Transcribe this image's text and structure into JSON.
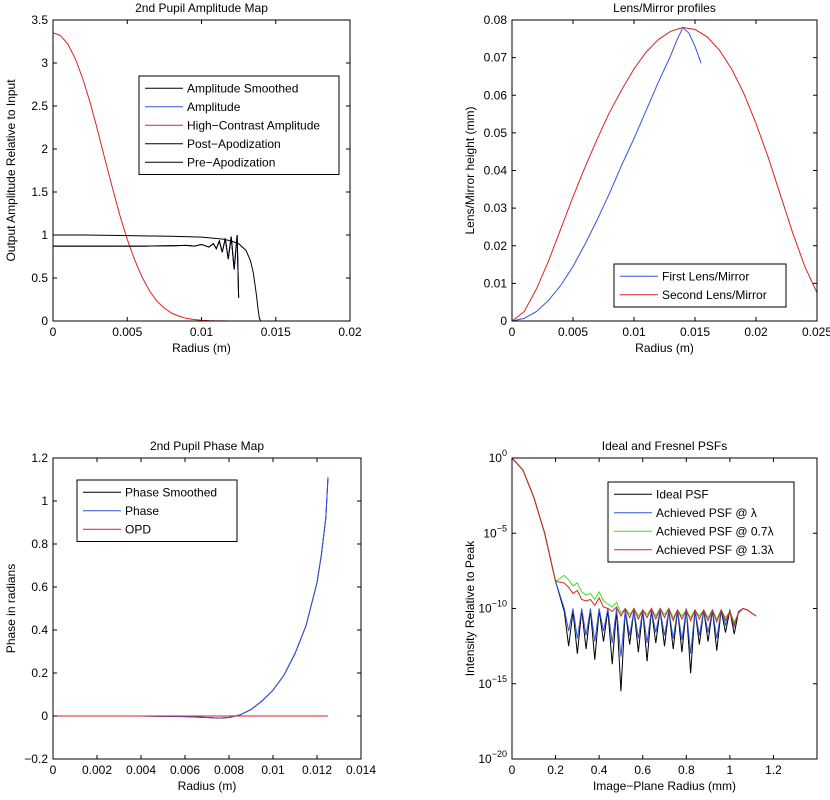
{
  "chart_data": [
    {
      "type": "line",
      "title": "2nd Pupil Amplitude Map",
      "xlabel": "Radius (m)",
      "ylabel": "Output Amplitude Relative to Input",
      "xlim": [
        0,
        0.02
      ],
      "ylim": [
        0,
        3.5
      ],
      "xticks": [
        0,
        0.005,
        0.01,
        0.015,
        0.02
      ],
      "xtick_labels": [
        "0",
        "0.005",
        "0.01",
        "0.015",
        "0.02"
      ],
      "yticks": [
        0,
        0.5,
        1,
        1.5,
        2,
        2.5,
        3,
        3.5
      ],
      "ytick_labels": [
        "0",
        "0.5",
        "1",
        "1.5",
        "2",
        "2.5",
        "3",
        "3.5"
      ],
      "legend_position": "top-right",
      "series": [
        {
          "name": "Amplitude Smoothed",
          "color": "#000000",
          "x": [
            0,
            0.002,
            0.004,
            0.006,
            0.008,
            0.009,
            0.0095,
            0.01,
            0.0105,
            0.0108,
            0.011,
            0.0112,
            0.0114,
            0.0116,
            0.0118,
            0.012,
            0.0122,
            0.0124,
            0.0125
          ],
          "y": [
            0.87,
            0.87,
            0.87,
            0.87,
            0.875,
            0.88,
            0.87,
            0.89,
            0.86,
            0.9,
            0.84,
            0.93,
            0.8,
            0.96,
            0.72,
            0.98,
            0.6,
            1.0,
            0.27
          ]
        },
        {
          "name": "Amplitude",
          "color": "#3355dd",
          "x": [
            0,
            0.002,
            0.004,
            0.006,
            0.008,
            0.009,
            0.0095,
            0.01,
            0.0105,
            0.0108,
            0.011,
            0.0112,
            0.0114,
            0.0116,
            0.0118,
            0.012,
            0.0122,
            0.0124,
            0.0125
          ],
          "y": [
            0.87,
            0.87,
            0.87,
            0.87,
            0.875,
            0.88,
            0.87,
            0.89,
            0.86,
            0.9,
            0.84,
            0.93,
            0.8,
            0.96,
            0.72,
            0.98,
            0.6,
            1.0,
            0.27
          ]
        },
        {
          "name": "High−Contrast Amplitude",
          "color": "#dd2222",
          "x": [
            0,
            0.0005,
            0.001,
            0.0015,
            0.002,
            0.0025,
            0.003,
            0.0035,
            0.004,
            0.0045,
            0.005,
            0.0055,
            0.006,
            0.0065,
            0.007,
            0.0075,
            0.008,
            0.0085,
            0.009,
            0.0095,
            0.01,
            0.0105,
            0.011,
            0.0115,
            0.012,
            0.0125
          ],
          "y": [
            3.35,
            3.32,
            3.22,
            3.05,
            2.82,
            2.54,
            2.22,
            1.88,
            1.55,
            1.23,
            0.95,
            0.71,
            0.51,
            0.35,
            0.23,
            0.15,
            0.09,
            0.055,
            0.03,
            0.017,
            0.009,
            0.004,
            0.002,
            0.001,
            0.0,
            0.0
          ]
        },
        {
          "name": "Post−Apodization",
          "color": "#000000",
          "x": [
            0,
            0.002,
            0.004,
            0.006,
            0.008,
            0.01,
            0.011,
            0.0115,
            0.012,
            0.0125,
            0.013,
            0.0133,
            0.0135,
            0.0137,
            0.0138,
            0.0139,
            0.014
          ],
          "y": [
            1.0,
            1.0,
            0.995,
            0.99,
            0.985,
            0.975,
            0.96,
            0.95,
            0.93,
            0.9,
            0.82,
            0.7,
            0.55,
            0.3,
            0.15,
            0.03,
            0.0
          ]
        },
        {
          "name": "Pre−Apodization",
          "color": "#000000",
          "x": [
            0,
            0.002,
            0.004,
            0.006,
            0.008,
            0.009,
            0.0095,
            0.01,
            0.0105,
            0.0108,
            0.011,
            0.0112,
            0.0114,
            0.0116,
            0.0118,
            0.012,
            0.0122,
            0.0124,
            0.0125
          ],
          "y": [
            0.87,
            0.87,
            0.87,
            0.87,
            0.875,
            0.88,
            0.87,
            0.89,
            0.86,
            0.9,
            0.84,
            0.93,
            0.8,
            0.96,
            0.72,
            0.98,
            0.6,
            1.0,
            0.27
          ]
        }
      ]
    },
    {
      "type": "line",
      "title": "Lens/Mirror profiles",
      "xlabel": "Radius (m)",
      "ylabel": "Lens/Mirror height (mm)",
      "xlim": [
        0,
        0.025
      ],
      "ylim": [
        0,
        0.08
      ],
      "xticks": [
        0,
        0.005,
        0.01,
        0.015,
        0.02,
        0.025
      ],
      "xtick_labels": [
        "0",
        "0.005",
        "0.01",
        "0.015",
        "0.02",
        "0.025"
      ],
      "yticks": [
        0,
        0.01,
        0.02,
        0.03,
        0.04,
        0.05,
        0.06,
        0.07,
        0.08
      ],
      "ytick_labels": [
        "0",
        "0.01",
        "0.02",
        "0.03",
        "0.04",
        "0.05",
        "0.06",
        "0.07",
        "0.08"
      ],
      "legend_position": "bottom-right",
      "series": [
        {
          "name": "First Lens/Mirror",
          "color": "#3355dd",
          "x": [
            0,
            0.001,
            0.002,
            0.003,
            0.004,
            0.005,
            0.006,
            0.007,
            0.008,
            0.009,
            0.01,
            0.011,
            0.012,
            0.013,
            0.0135,
            0.014,
            0.0145,
            0.015,
            0.0155
          ],
          "y": [
            0,
            0.0007,
            0.0025,
            0.0055,
            0.0095,
            0.0145,
            0.0205,
            0.027,
            0.034,
            0.0415,
            0.0485,
            0.056,
            0.0635,
            0.0705,
            0.0745,
            0.078,
            0.0765,
            0.073,
            0.0685
          ]
        },
        {
          "name": "Second Lens/Mirror",
          "color": "#dd2222",
          "x": [
            0,
            0.001,
            0.002,
            0.003,
            0.004,
            0.005,
            0.006,
            0.007,
            0.008,
            0.009,
            0.01,
            0.011,
            0.012,
            0.013,
            0.014,
            0.015,
            0.016,
            0.017,
            0.018,
            0.019,
            0.02,
            0.021,
            0.022,
            0.023,
            0.024,
            0.025
          ],
          "y": [
            0,
            0.0025,
            0.0085,
            0.016,
            0.0245,
            0.033,
            0.041,
            0.0485,
            0.0555,
            0.0615,
            0.067,
            0.0715,
            0.0748,
            0.077,
            0.078,
            0.0775,
            0.0755,
            0.072,
            0.067,
            0.0605,
            0.0525,
            0.0435,
            0.0335,
            0.0235,
            0.0145,
            0.0075
          ]
        }
      ]
    },
    {
      "type": "line",
      "title": "2nd Pupil Phase Map",
      "xlabel": "Radius (m)",
      "ylabel": "Phase in radians",
      "xlim": [
        0,
        0.014
      ],
      "ylim": [
        -0.2,
        1.2
      ],
      "xticks": [
        0,
        0.002,
        0.004,
        0.006,
        0.008,
        0.01,
        0.012,
        0.014
      ],
      "xtick_labels": [
        "0",
        "0.002",
        "0.004",
        "0.006",
        "0.008",
        "0.01",
        "0.012",
        "0.014"
      ],
      "yticks": [
        -0.2,
        0,
        0.2,
        0.4,
        0.6,
        0.8,
        1,
        1.2
      ],
      "ytick_labels": [
        "−0.2",
        "0",
        "0.2",
        "0.4",
        "0.6",
        "0.8",
        "1",
        "1.2"
      ],
      "legend_position": "top-left",
      "series": [
        {
          "name": "Phase Smoothed",
          "color": "#000000",
          "x": [
            0,
            0.002,
            0.004,
            0.006,
            0.007,
            0.0075,
            0.008,
            0.0085,
            0.009,
            0.0095,
            0.01,
            0.0105,
            0.011,
            0.0115,
            0.012,
            0.0122,
            0.0124,
            0.0125
          ],
          "y": [
            0,
            0,
            0,
            -0.003,
            -0.007,
            -0.01,
            -0.007,
            0.005,
            0.03,
            0.07,
            0.12,
            0.19,
            0.29,
            0.42,
            0.62,
            0.75,
            0.92,
            1.11
          ]
        },
        {
          "name": "Phase",
          "color": "#3355dd",
          "x": [
            0,
            0.002,
            0.004,
            0.006,
            0.007,
            0.0075,
            0.008,
            0.0085,
            0.009,
            0.0095,
            0.01,
            0.0105,
            0.011,
            0.0115,
            0.012,
            0.0122,
            0.0124,
            0.0125
          ],
          "y": [
            0,
            0,
            0,
            -0.003,
            -0.007,
            -0.01,
            -0.007,
            0.005,
            0.03,
            0.07,
            0.12,
            0.19,
            0.29,
            0.42,
            0.62,
            0.75,
            0.92,
            1.11
          ]
        },
        {
          "name": "OPD",
          "color": "#dd2222",
          "x": [
            0,
            0.0125
          ],
          "y": [
            0,
            0
          ]
        }
      ]
    },
    {
      "type": "line",
      "title": "Ideal and Fresnel PSFs",
      "xlabel": "Image−Plane Radius (mm)",
      "ylabel": "Intensity Relative to Peak",
      "xlim": [
        0,
        1.4
      ],
      "ylim": [
        -20,
        0
      ],
      "y_scale": "log",
      "xticks": [
        0,
        0.2,
        0.4,
        0.6,
        0.8,
        1.0,
        1.2
      ],
      "xtick_labels": [
        "0",
        "0.2",
        "0.4",
        "0.6",
        "0.8",
        "1",
        "1.2"
      ],
      "yticks": [
        0,
        -5,
        -10,
        -15,
        -20
      ],
      "ytick_base": "10",
      "ytick_exponents": [
        "0",
        "−5",
        "−10",
        "−15",
        "−20"
      ],
      "legend_position": "top-right",
      "series": [
        {
          "name": "Ideal PSF",
          "color": "#000000",
          "x": [
            0,
            0.05,
            0.1,
            0.15,
            0.2,
            0.24,
            0.26,
            0.28,
            0.3,
            0.32,
            0.34,
            0.36,
            0.38,
            0.4,
            0.42,
            0.44,
            0.46,
            0.48,
            0.5,
            0.52,
            0.54,
            0.56,
            0.58,
            0.6,
            0.62,
            0.64,
            0.66,
            0.68,
            0.7,
            0.72,
            0.74,
            0.76,
            0.78,
            0.8,
            0.82,
            0.84,
            0.86,
            0.88,
            0.9,
            0.92,
            0.94,
            0.96,
            0.98,
            1.0,
            1.02,
            1.04,
            1.06,
            1.08,
            1.1,
            1.12
          ],
          "y": [
            0,
            -0.8,
            -2.6,
            -5.0,
            -8.2,
            -10.2,
            -12.5,
            -10.2,
            -13.0,
            -10.1,
            -12.7,
            -10.1,
            -13.4,
            -10.1,
            -12.2,
            -10.1,
            -13.7,
            -10.1,
            -15.5,
            -10.1,
            -12.4,
            -10.1,
            -12.9,
            -10.1,
            -13.5,
            -10.1,
            -12.3,
            -10.1,
            -12.5,
            -10.1,
            -12.7,
            -10.1,
            -12.9,
            -10.0,
            -14.3,
            -10.1,
            -12.4,
            -10.1,
            -12.2,
            -10.1,
            -12.8,
            -10.1,
            -11.6,
            -10.1,
            -11.7,
            -10.2,
            -10.0,
            -10.1,
            -10.3,
            -10.5
          ]
        },
        {
          "name": "Achieved PSF @ λ",
          "color": "#3355dd",
          "x": [
            0,
            0.05,
            0.1,
            0.15,
            0.2,
            0.24,
            0.26,
            0.28,
            0.3,
            0.32,
            0.34,
            0.36,
            0.38,
            0.4,
            0.42,
            0.44,
            0.46,
            0.48,
            0.5,
            0.52,
            0.54,
            0.56,
            0.58,
            0.6,
            0.62,
            0.64,
            0.66,
            0.68,
            0.7,
            0.72,
            0.74,
            0.76,
            0.78,
            0.8,
            0.82,
            0.84,
            0.86,
            0.88,
            0.9,
            0.92,
            0.94,
            0.96,
            0.98,
            1.0,
            1.02,
            1.04,
            1.06,
            1.08,
            1.1,
            1.12
          ],
          "y": [
            0,
            -0.8,
            -2.6,
            -5.0,
            -8.2,
            -10.0,
            -11.5,
            -10.0,
            -12.0,
            -10.0,
            -11.8,
            -10.0,
            -12.2,
            -10.0,
            -11.5,
            -10.0,
            -12.3,
            -10.0,
            -13.2,
            -10.1,
            -11.8,
            -10.1,
            -12.0,
            -10.1,
            -12.3,
            -10.1,
            -11.6,
            -10.1,
            -11.8,
            -10.1,
            -12.0,
            -10.1,
            -12.1,
            -10.0,
            -13.0,
            -10.1,
            -11.8,
            -10.1,
            -11.6,
            -10.1,
            -12.0,
            -10.1,
            -11.1,
            -10.1,
            -11.2,
            -10.2,
            -10.0,
            -10.1,
            -10.3,
            -10.5
          ]
        },
        {
          "name": "Achieved PSF @ 0.7λ",
          "color": "#44dd22",
          "x": [
            0,
            0.05,
            0.1,
            0.15,
            0.2,
            0.24,
            0.26,
            0.28,
            0.3,
            0.32,
            0.34,
            0.36,
            0.38,
            0.4,
            0.42,
            0.44,
            0.46,
            0.48,
            0.5,
            0.52,
            0.54,
            0.56,
            0.58,
            0.6,
            0.62,
            0.64,
            0.66,
            0.68,
            0.7,
            0.72,
            0.74,
            0.76,
            0.78,
            0.8,
            0.82,
            0.84,
            0.86,
            0.88,
            0.9,
            0.92,
            0.94,
            0.96,
            0.98,
            1.0,
            1.02,
            1.04,
            1.06,
            1.08,
            1.1,
            1.12
          ],
          "y": [
            0,
            -0.8,
            -2.6,
            -5.0,
            -8.2,
            -7.8,
            -8.1,
            -8.5,
            -8.3,
            -8.9,
            -9.1,
            -9.0,
            -9.4,
            -8.9,
            -9.5,
            -9.7,
            -9.9,
            -9.6,
            -10.3,
            -10.0,
            -10.4,
            -10.0,
            -10.5,
            -10.1,
            -10.4,
            -10.0,
            -10.5,
            -10.0,
            -10.4,
            -10.0,
            -10.6,
            -10.1,
            -10.5,
            -10.1,
            -10.6,
            -10.1,
            -10.5,
            -10.1,
            -10.6,
            -10.1,
            -10.7,
            -10.1,
            -10.6,
            -10.2,
            -10.9,
            -10.3,
            -10.0,
            -10.1,
            -10.3,
            -10.5
          ]
        },
        {
          "name": "Achieved PSF @ 1.3λ",
          "color": "#dd2222",
          "x": [
            0,
            0.05,
            0.1,
            0.15,
            0.2,
            0.24,
            0.26,
            0.28,
            0.3,
            0.32,
            0.34,
            0.36,
            0.38,
            0.4,
            0.42,
            0.44,
            0.46,
            0.48,
            0.5,
            0.52,
            0.54,
            0.56,
            0.58,
            0.6,
            0.62,
            0.64,
            0.66,
            0.68,
            0.7,
            0.72,
            0.74,
            0.76,
            0.78,
            0.8,
            0.82,
            0.84,
            0.86,
            0.88,
            0.9,
            0.92,
            0.94,
            0.96,
            0.98,
            1.0,
            1.02,
            1.04,
            1.06,
            1.08,
            1.1,
            1.12
          ],
          "y": [
            0,
            -0.8,
            -2.6,
            -5.0,
            -8.2,
            -8.3,
            -8.6,
            -9.0,
            -8.8,
            -9.4,
            -9.5,
            -9.4,
            -9.8,
            -9.3,
            -9.9,
            -10.0,
            -10.2,
            -9.9,
            -10.5,
            -10.0,
            -10.6,
            -10.0,
            -10.7,
            -10.1,
            -10.6,
            -10.0,
            -10.7,
            -10.0,
            -10.6,
            -10.0,
            -10.8,
            -10.1,
            -10.7,
            -10.1,
            -10.8,
            -10.1,
            -10.7,
            -10.1,
            -10.8,
            -10.1,
            -10.9,
            -10.1,
            -10.8,
            -10.2,
            -11.1,
            -10.3,
            -10.0,
            -10.1,
            -10.3,
            -10.5
          ]
        }
      ]
    }
  ]
}
